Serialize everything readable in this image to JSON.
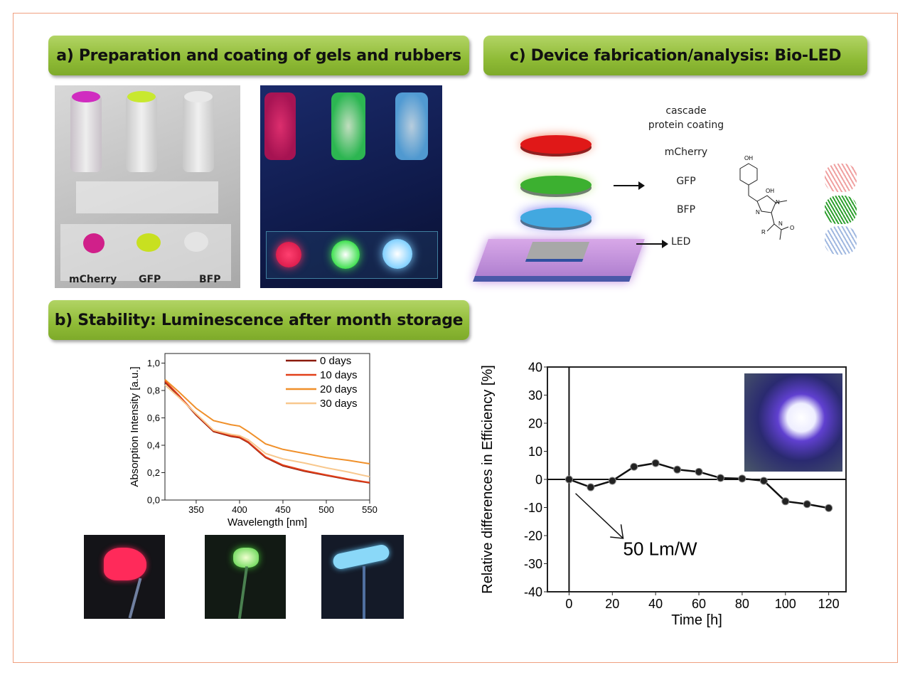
{
  "panels": {
    "a": {
      "title": "a) Preparation and coating of gels and rubbers",
      "labels": [
        "mCherry",
        "GFP",
        "BFP"
      ]
    },
    "b": {
      "title": "b) Stability: Luminescence after month storage"
    },
    "c": {
      "title": "c) Device fabrication/analysis: Bio-LED",
      "coating_label": "cascade\nprotein coating",
      "layers": [
        "mCherry",
        "GFP",
        "BFP"
      ],
      "led_label": "LED",
      "chem_labels": {
        "oh_top": "OH",
        "oh": "OH",
        "n1": "N",
        "n2": "N",
        "n3": "N",
        "r": "R",
        "o": "O"
      }
    }
  },
  "colors": {
    "header_green": "#8fbb36",
    "mcherry": "#e8203a",
    "gfp": "#3fb83a",
    "bfp": "#4aaee6",
    "led": "#a070c8"
  },
  "chart_data": [
    {
      "type": "line",
      "xlabel": "Wavelength [nm]",
      "ylabel": "Absorption Intensity [a.u.]",
      "xlim": [
        314,
        550
      ],
      "ylim": [
        0,
        1.07
      ],
      "xticks": [
        "350",
        "400",
        "450",
        "500",
        "550"
      ],
      "yticks": [
        "0,0",
        "0,2",
        "0,4",
        "0,6",
        "0,8",
        "1,0"
      ],
      "legend": "top-right",
      "x": [
        314,
        330,
        350,
        370,
        390,
        400,
        410,
        430,
        450,
        475,
        500,
        525,
        550
      ],
      "series": [
        {
          "name": "0 days",
          "color": "#8b1a0a",
          "values": [
            0.86,
            0.76,
            0.62,
            0.5,
            0.465,
            0.455,
            0.42,
            0.31,
            0.25,
            0.21,
            0.18,
            0.15,
            0.125
          ]
        },
        {
          "name": "10 days",
          "color": "#e2401a",
          "values": [
            0.87,
            0.765,
            0.625,
            0.505,
            0.47,
            0.46,
            0.425,
            0.315,
            0.255,
            0.215,
            0.183,
            0.153,
            0.128
          ]
        },
        {
          "name": "20 days",
          "color": "#f0902a",
          "values": [
            0.88,
            0.79,
            0.67,
            0.58,
            0.55,
            0.54,
            0.5,
            0.41,
            0.37,
            0.34,
            0.31,
            0.29,
            0.265
          ]
        },
        {
          "name": "30 days",
          "color": "#f8c88e",
          "values": [
            0.84,
            0.75,
            0.63,
            0.51,
            0.48,
            0.47,
            0.44,
            0.34,
            0.3,
            0.27,
            0.235,
            0.205,
            0.17
          ]
        }
      ]
    },
    {
      "type": "line",
      "xlabel": "Time [h]",
      "ylabel": "Relative differences in Efficiency [%]",
      "xlim": [
        -10,
        128
      ],
      "ylim": [
        -40,
        40
      ],
      "xticks": [
        "0",
        "20",
        "40",
        "60",
        "80",
        "100",
        "120"
      ],
      "yticks": [
        "-40",
        "-30",
        "-20",
        "-10",
        "0",
        "10",
        "20",
        "30",
        "40"
      ],
      "annotation": "50 Lm/W",
      "x": [
        0,
        10,
        20,
        30,
        40,
        50,
        60,
        70,
        80,
        90,
        100,
        110,
        120
      ],
      "series": [
        {
          "color": "#111111",
          "values": [
            0,
            -2.8,
            -0.5,
            4.5,
            5.8,
            3.5,
            2.7,
            0.5,
            0.3,
            -0.5,
            -7.8,
            -8.8,
            -10.2
          ]
        }
      ]
    }
  ]
}
